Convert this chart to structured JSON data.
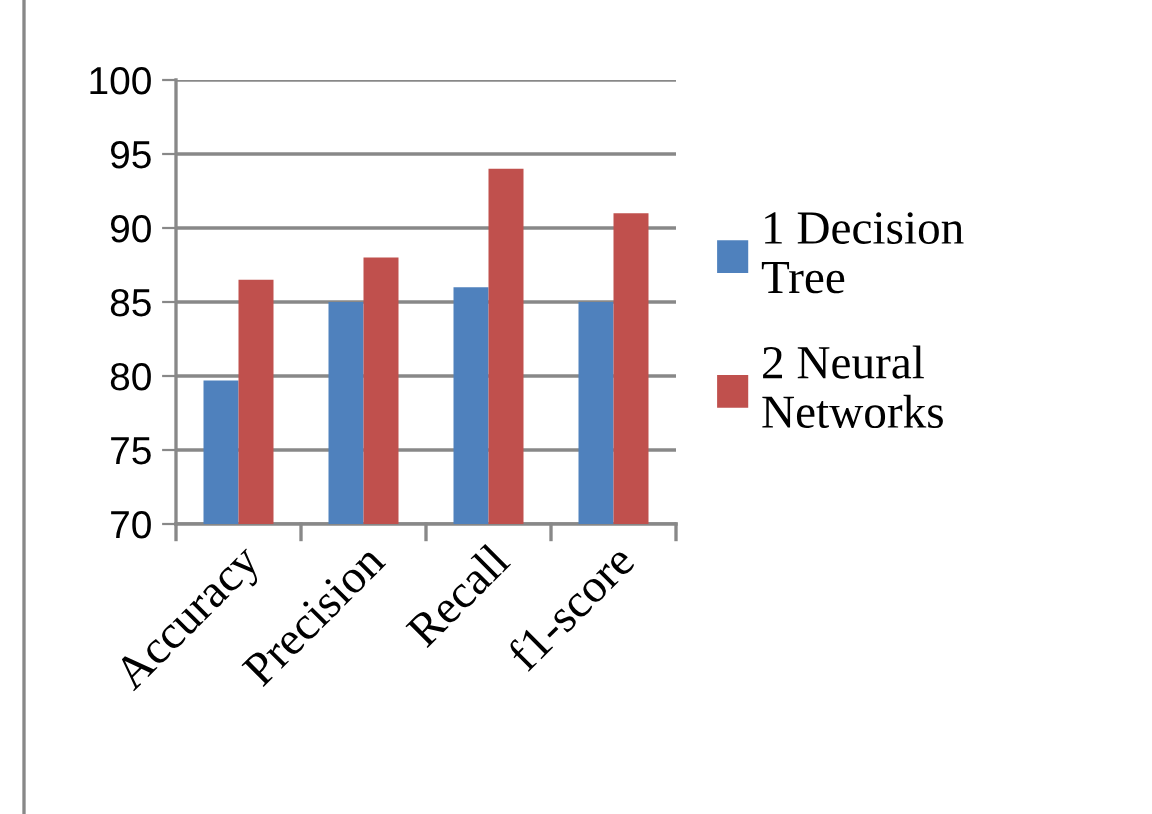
{
  "chart_data": {
    "type": "bar",
    "categories": [
      "Accuracy",
      "Precision",
      "Recall",
      "f1-score"
    ],
    "series": [
      {
        "name": "1 Decision Tree",
        "color": "#4f81bd",
        "values": [
          79.7,
          85,
          86,
          85
        ]
      },
      {
        "name": "2 Neural Networks",
        "color": "#c0504d",
        "values": [
          86.5,
          88,
          94,
          91
        ]
      }
    ],
    "ylim": [
      70,
      100
    ],
    "yticks": [
      70,
      75,
      80,
      85,
      90,
      95,
      100
    ],
    "grid": "y",
    "legend": "right"
  }
}
